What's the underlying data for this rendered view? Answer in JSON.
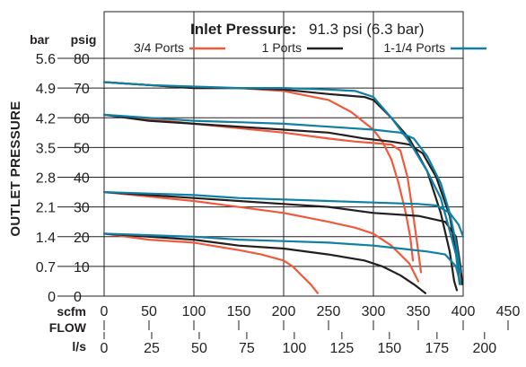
{
  "chart_data": {
    "type": "line",
    "title_bold": "Inlet Pressure:",
    "title_rest": "91.3 psi (6.3 bar)",
    "ylabel": "OUTLET PRESSURE",
    "y_unit_bar": "bar",
    "y_unit_psig": "psig",
    "y_ticks_psig": [
      "80",
      "70",
      "60",
      "50",
      "40",
      "30",
      "20",
      "10",
      "0"
    ],
    "y_ticks_bar": [
      "5.6",
      "4.9",
      "4.2",
      "3.5",
      "2.8",
      "2.1",
      "1.4",
      "0.7",
      "0"
    ],
    "ylim": [
      0,
      80
    ],
    "xlim": [
      0,
      400
    ],
    "x_unit_scfm": "scfm",
    "x_unit_flow": "FLOW",
    "x_unit_ls": "l/s",
    "x_ticks_scfm": [
      "0",
      "50",
      "100",
      "150",
      "200",
      "250",
      "300",
      "350",
      "400",
      "450"
    ],
    "x_ticks_ls": [
      "0",
      "25",
      "50",
      "75",
      "100",
      "125",
      "150",
      "175",
      "200"
    ],
    "grid": true,
    "legend": [
      {
        "name": "3/4 Ports",
        "color": "#ef5a3c"
      },
      {
        "name": "1 Ports",
        "color": "#231f20"
      },
      {
        "name": "1-1/4 Ports",
        "color": "#0f7fa3"
      }
    ],
    "series": [
      {
        "port": "3/4 Ports",
        "color": "#ef5a3c",
        "points": [
          [
            0,
            72
          ],
          [
            50,
            71
          ],
          [
            100,
            70
          ],
          [
            150,
            70
          ],
          [
            200,
            69
          ],
          [
            250,
            66
          ],
          [
            275,
            62
          ],
          [
            300,
            56
          ],
          [
            310,
            52
          ],
          [
            320,
            46
          ],
          [
            328,
            38
          ],
          [
            336,
            28
          ],
          [
            341,
            20
          ],
          [
            344,
            12
          ]
        ]
      },
      {
        "port": "3/4 Ports",
        "color": "#ef5a3c",
        "points": [
          [
            0,
            61
          ],
          [
            100,
            58
          ],
          [
            200,
            55
          ],
          [
            250,
            53
          ],
          [
            280,
            52
          ],
          [
            300,
            51.5
          ],
          [
            320,
            51
          ],
          [
            330,
            49
          ],
          [
            338,
            40
          ],
          [
            344,
            28
          ],
          [
            350,
            15
          ],
          [
            353,
            8
          ]
        ]
      },
      {
        "port": "3/4 Ports",
        "color": "#ef5a3c",
        "points": [
          [
            0,
            35
          ],
          [
            100,
            32
          ],
          [
            200,
            28
          ],
          [
            250,
            25
          ],
          [
            280,
            23
          ],
          [
            300,
            21
          ],
          [
            320,
            17
          ],
          [
            340,
            11
          ],
          [
            350,
            5
          ]
        ]
      },
      {
        "port": "3/4 Ports",
        "color": "#ef5a3c",
        "points": [
          [
            0,
            21
          ],
          [
            50,
            19
          ],
          [
            100,
            18
          ],
          [
            150,
            15.5
          ],
          [
            175,
            14
          ],
          [
            200,
            12
          ],
          [
            210,
            10
          ],
          [
            220,
            7
          ],
          [
            230,
            4
          ],
          [
            238,
            1
          ]
        ]
      },
      {
        "port": "1 Ports",
        "color": "#231f20",
        "points": [
          [
            0,
            72
          ],
          [
            50,
            71
          ],
          [
            100,
            70
          ],
          [
            150,
            70
          ],
          [
            200,
            69.5
          ],
          [
            250,
            68
          ],
          [
            290,
            67
          ],
          [
            300,
            66
          ],
          [
            320,
            60
          ],
          [
            340,
            53
          ],
          [
            360,
            42
          ],
          [
            375,
            28
          ],
          [
            385,
            15
          ],
          [
            390,
            5
          ],
          [
            393,
            2
          ]
        ]
      },
      {
        "port": "1 Ports",
        "color": "#231f20",
        "points": [
          [
            0,
            61
          ],
          [
            50,
            59
          ],
          [
            100,
            58
          ],
          [
            150,
            57
          ],
          [
            200,
            56
          ],
          [
            250,
            55
          ],
          [
            290,
            53
          ],
          [
            320,
            52
          ],
          [
            340,
            51
          ],
          [
            355,
            48
          ],
          [
            370,
            40
          ],
          [
            385,
            27
          ],
          [
            392,
            15
          ],
          [
            396,
            5
          ]
        ]
      },
      {
        "port": "1 Ports",
        "color": "#231f20",
        "points": [
          [
            0,
            35
          ],
          [
            50,
            34
          ],
          [
            100,
            33
          ],
          [
            150,
            32
          ],
          [
            200,
            31
          ],
          [
            250,
            30
          ],
          [
            300,
            28
          ],
          [
            350,
            27
          ],
          [
            380,
            25
          ],
          [
            392,
            20
          ],
          [
            397,
            10
          ],
          [
            399,
            4
          ]
        ]
      },
      {
        "port": "1 Ports",
        "color": "#231f20",
        "points": [
          [
            0,
            21
          ],
          [
            50,
            20
          ],
          [
            100,
            19
          ],
          [
            150,
            17
          ],
          [
            200,
            16
          ],
          [
            250,
            14
          ],
          [
            290,
            12
          ],
          [
            310,
            10
          ],
          [
            330,
            7
          ],
          [
            345,
            4
          ],
          [
            358,
            1
          ]
        ]
      },
      {
        "port": "1-1/4 Ports",
        "color": "#0f7fa3",
        "points": [
          [
            0,
            72
          ],
          [
            50,
            71
          ],
          [
            100,
            70.5
          ],
          [
            150,
            70
          ],
          [
            200,
            70
          ],
          [
            250,
            69.5
          ],
          [
            280,
            69
          ],
          [
            300,
            67
          ],
          [
            320,
            60
          ],
          [
            340,
            52
          ],
          [
            360,
            42
          ],
          [
            375,
            33
          ],
          [
            385,
            22
          ],
          [
            392,
            14
          ],
          [
            396,
            4
          ]
        ]
      },
      {
        "port": "1-1/4 Ports",
        "color": "#0f7fa3",
        "points": [
          [
            0,
            61
          ],
          [
            50,
            60
          ],
          [
            100,
            59
          ],
          [
            150,
            58.5
          ],
          [
            200,
            58
          ],
          [
            250,
            57
          ],
          [
            300,
            56
          ],
          [
            330,
            55
          ],
          [
            345,
            53
          ],
          [
            360,
            47
          ],
          [
            375,
            38
          ],
          [
            385,
            28
          ],
          [
            392,
            18
          ],
          [
            397,
            8
          ]
        ]
      },
      {
        "port": "1-1/4 Ports",
        "color": "#0f7fa3",
        "points": [
          [
            0,
            35
          ],
          [
            50,
            34.5
          ],
          [
            100,
            34
          ],
          [
            150,
            33
          ],
          [
            200,
            32.5
          ],
          [
            250,
            32
          ],
          [
            300,
            31.5
          ],
          [
            350,
            31
          ],
          [
            370,
            30.5
          ],
          [
            385,
            28
          ],
          [
            395,
            24
          ],
          [
            400,
            20
          ]
        ]
      },
      {
        "port": "1-1/4 Ports",
        "color": "#0f7fa3",
        "points": [
          [
            0,
            21
          ],
          [
            50,
            20.5
          ],
          [
            100,
            20
          ],
          [
            150,
            19
          ],
          [
            200,
            18.5
          ],
          [
            250,
            18
          ],
          [
            300,
            17
          ],
          [
            330,
            16
          ],
          [
            360,
            15
          ],
          [
            380,
            14
          ],
          [
            392,
            10
          ],
          [
            397,
            4
          ]
        ]
      }
    ]
  }
}
